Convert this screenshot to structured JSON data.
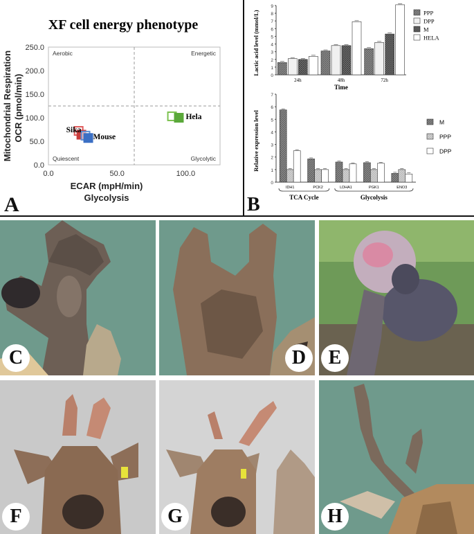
{
  "panel_a": {
    "letter": "A",
    "chart_data": {
      "type": "scatter",
      "title": "XF cell energy phenotype",
      "ylabel_line1": "Mitochondrial Respiration",
      "ylabel_line2": "OCR (pmol/min)",
      "xlabel_line1": "ECAR (mpH/min)",
      "xlabel_line2": "Glycolysis",
      "xlim": [
        0,
        125
      ],
      "ylim": [
        0,
        250
      ],
      "xticks": [
        "0.0",
        "50.0",
        "100.0"
      ],
      "yticks": [
        "0.0",
        "50.0",
        "100.0",
        "150.0",
        "200.0",
        "250.0"
      ],
      "quadrants": {
        "tl": "Aerobic",
        "tr": "Energetic",
        "bl": "Quiescent",
        "br": "Glycolytic"
      },
      "points": [
        {
          "label": "Sika",
          "x": 22,
          "y": 72,
          "color": "#e05a5a",
          "style": "open"
        },
        {
          "label": "Sika",
          "x": 24,
          "y": 64,
          "color": "#c83c3c",
          "style": "filled"
        },
        {
          "label": "Mouse",
          "x": 27,
          "y": 62,
          "color": "#5b8fd6",
          "style": "open"
        },
        {
          "label": "Mouse",
          "x": 29,
          "y": 57,
          "color": "#3b6fc4",
          "style": "filled"
        },
        {
          "label": "Hela",
          "x": 90,
          "y": 103,
          "color": "#7cc250",
          "style": "open"
        },
        {
          "label": "Hela",
          "x": 95,
          "y": 100,
          "color": "#5aa83a",
          "style": "filled"
        }
      ],
      "point_labels": [
        "Sika",
        "Mouse",
        "Hela"
      ]
    }
  },
  "panel_b": {
    "letter": "B",
    "top_chart": {
      "type": "bar",
      "ylabel": "Lactic acid level",
      "ylabel_unit": "(mmol/L)",
      "xlabel": "Time",
      "categories": [
        "24h",
        "48h",
        "72h"
      ],
      "ylim": [
        0,
        9
      ],
      "yticks": [
        "0",
        "1",
        "2",
        "3",
        "4",
        "5",
        "6",
        "7",
        "8",
        "9"
      ],
      "series": [
        {
          "name": "PPP",
          "values": [
            1.6,
            3.1,
            3.4
          ]
        },
        {
          "name": "DPP",
          "values": [
            2.1,
            3.8,
            4.2
          ]
        },
        {
          "name": "M",
          "values": [
            2.0,
            3.8,
            5.3
          ]
        },
        {
          "name": "HELA",
          "values": [
            2.4,
            6.9,
            9.1
          ]
        }
      ]
    },
    "bottom_chart": {
      "type": "bar",
      "ylabel": "Relative expression level",
      "categories": [
        "IDH1",
        "PCK2",
        "LDHA1",
        "PGK1",
        "ENO3"
      ],
      "groups": [
        "TCA Cycle",
        "Glycolysis"
      ],
      "ylim": [
        0,
        7
      ],
      "yticks": [
        "0",
        "1",
        "2",
        "3",
        "4",
        "5",
        "6",
        "7"
      ],
      "series": [
        {
          "name": "M",
          "values": [
            5.75,
            1.85,
            1.6,
            1.55,
            0.7
          ]
        },
        {
          "name": "PPP",
          "values": [
            1.0,
            1.0,
            1.0,
            1.0,
            1.0
          ]
        },
        {
          "name": "DPP",
          "values": [
            2.5,
            1.0,
            1.45,
            1.5,
            0.65
          ]
        }
      ]
    }
  },
  "photos": [
    {
      "letter": "C",
      "bg": "#6f9a8c"
    },
    {
      "letter": "D",
      "bg": "#6f9a8c"
    },
    {
      "letter": "E",
      "bg": "#6e9a58"
    },
    {
      "letter": "F",
      "bg": "#c9c9c9"
    },
    {
      "letter": "G",
      "bg": "#d4d4d4"
    },
    {
      "letter": "H",
      "bg": "#6f9a8c"
    }
  ]
}
